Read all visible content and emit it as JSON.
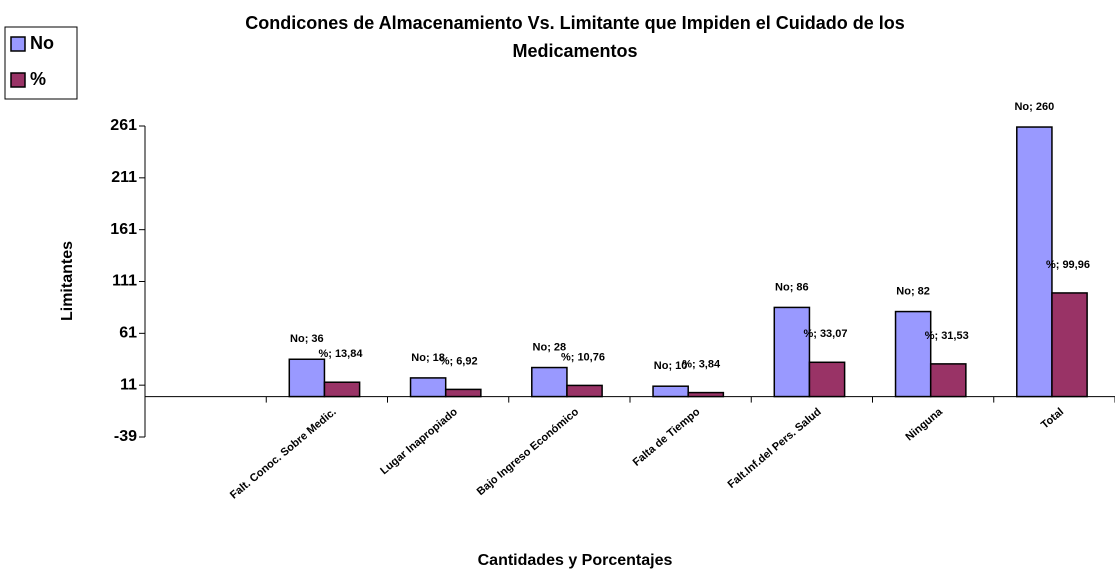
{
  "chart_data": {
    "type": "bar",
    "title": [
      "Condicones de Almacenamiento Vs. Limitante que Impiden el Cuidado de los",
      "Medicamentos"
    ],
    "x_label": "Cantidades y Porcentajes",
    "y_label": "Limitantes",
    "categories": [
      null,
      "Falt. Conoc. Sobre Medic.",
      "Lugar Inapropiado",
      "Bajo Ingreso Económico",
      "Falta de Tiempo",
      "Falt.Inf.del Pers. Salud",
      "Ninguna",
      "Total"
    ],
    "series": [
      {
        "name": "No",
        "color": "#9999ff",
        "values": [
          null,
          36,
          18,
          28,
          10,
          86,
          82,
          260
        ],
        "value_labels": [
          null,
          "No; 36",
          "No; 18",
          "No; 28",
          "No; 10",
          "No; 86",
          "No; 82",
          "No; 260"
        ]
      },
      {
        "name": "%",
        "color": "#993366",
        "values": [
          null,
          13.84,
          6.92,
          10.76,
          3.84,
          33.07,
          31.53,
          99.96
        ],
        "value_labels": [
          null,
          "%; 13,84",
          "%; 6,92",
          "%; 10,76",
          "%; 3,84",
          "%; 33,07",
          "%; 31,53",
          "%; 99,96"
        ]
      }
    ],
    "ylim": [
      -39,
      261
    ],
    "yticks": [
      -39,
      11,
      61,
      111,
      161,
      211,
      261
    ],
    "legend": "top-left"
  }
}
